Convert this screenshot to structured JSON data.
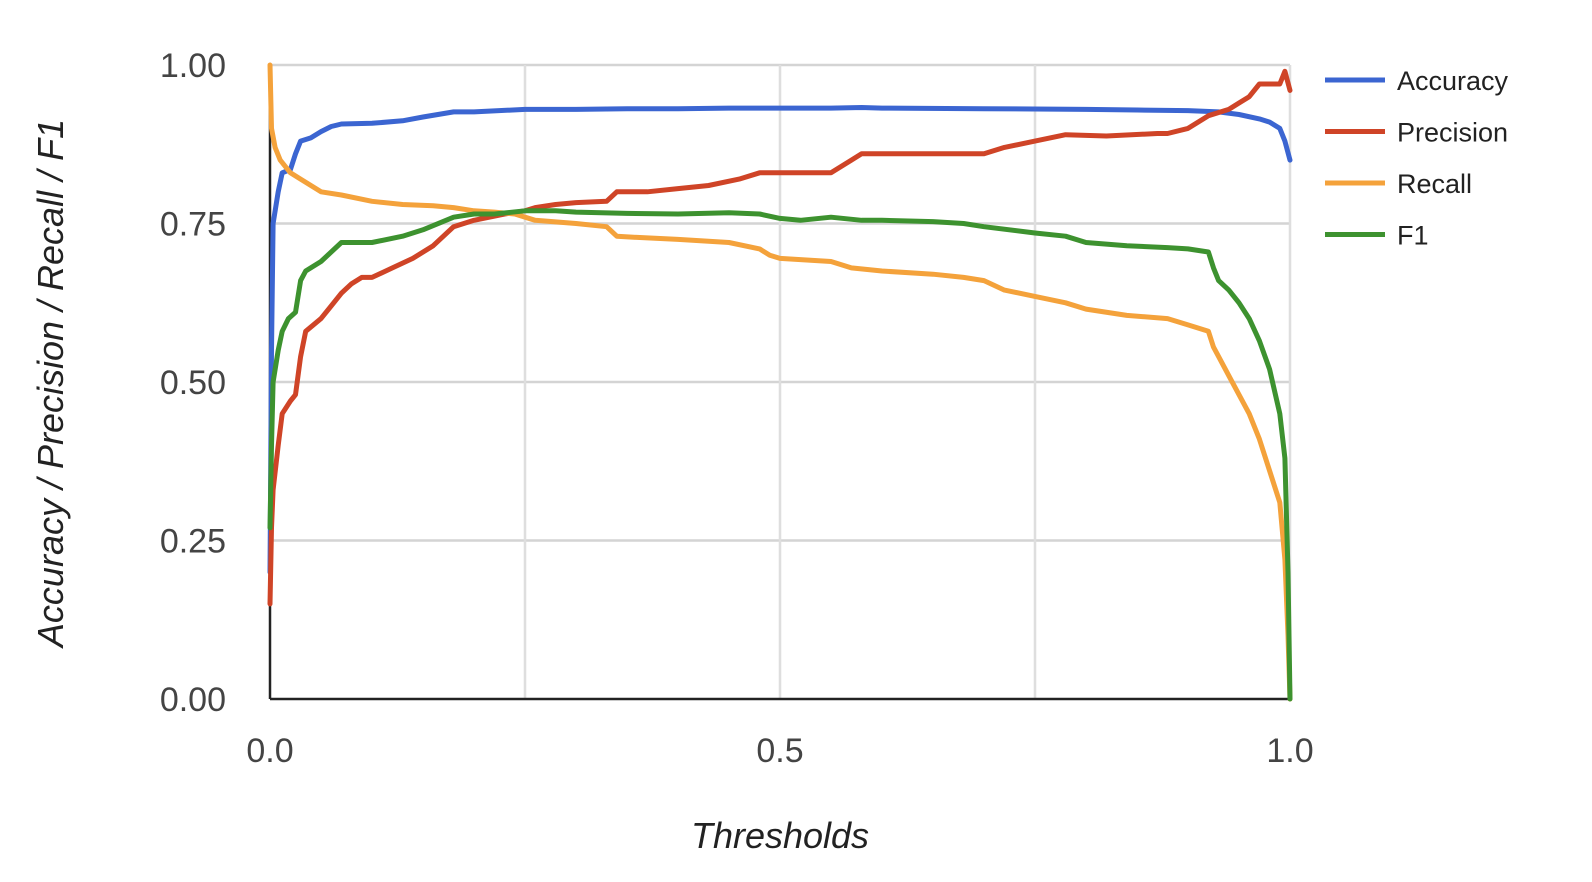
{
  "chart_data": {
    "type": "line",
    "xlabel": "Thresholds",
    "ylabel": "Accuracy / Precision / Recall / F1",
    "xlim": [
      0,
      1
    ],
    "ylim": [
      0,
      1
    ],
    "x_ticks": [
      0.0,
      0.25,
      0.5,
      0.75,
      1.0
    ],
    "x_tick_labels": [
      "0.0",
      "",
      "0.5",
      "",
      "1.0"
    ],
    "y_ticks": [
      0.0,
      0.25,
      0.5,
      0.75,
      1.0
    ],
    "y_tick_labels": [
      "0.00",
      "0.25",
      "0.50",
      "0.75",
      "1.00"
    ],
    "grid": true,
    "legend_position": "right",
    "series": [
      {
        "name": "Accuracy",
        "color": "#3b65d1",
        "points": [
          [
            0.0,
            0.2
          ],
          [
            0.0015,
            0.55
          ],
          [
            0.003,
            0.75
          ],
          [
            0.008,
            0.8
          ],
          [
            0.012,
            0.83
          ],
          [
            0.02,
            0.835
          ],
          [
            0.025,
            0.86
          ],
          [
            0.03,
            0.88
          ],
          [
            0.04,
            0.885
          ],
          [
            0.05,
            0.895
          ],
          [
            0.06,
            0.903
          ],
          [
            0.07,
            0.907
          ],
          [
            0.1,
            0.908
          ],
          [
            0.13,
            0.912
          ],
          [
            0.15,
            0.918
          ],
          [
            0.18,
            0.926
          ],
          [
            0.2,
            0.926
          ],
          [
            0.25,
            0.93
          ],
          [
            0.3,
            0.93
          ],
          [
            0.35,
            0.931
          ],
          [
            0.4,
            0.931
          ],
          [
            0.45,
            0.932
          ],
          [
            0.5,
            0.932
          ],
          [
            0.55,
            0.932
          ],
          [
            0.58,
            0.933
          ],
          [
            0.6,
            0.932
          ],
          [
            0.7,
            0.931
          ],
          [
            0.8,
            0.93
          ],
          [
            0.85,
            0.929
          ],
          [
            0.9,
            0.928
          ],
          [
            0.93,
            0.926
          ],
          [
            0.95,
            0.922
          ],
          [
            0.97,
            0.915
          ],
          [
            0.98,
            0.91
          ],
          [
            0.99,
            0.9
          ],
          [
            0.995,
            0.88
          ],
          [
            1.0,
            0.85
          ]
        ]
      },
      {
        "name": "Precision",
        "color": "#cf4427",
        "points": [
          [
            0.0,
            0.15
          ],
          [
            0.0015,
            0.27
          ],
          [
            0.003,
            0.33
          ],
          [
            0.008,
            0.4
          ],
          [
            0.012,
            0.45
          ],
          [
            0.02,
            0.47
          ],
          [
            0.025,
            0.48
          ],
          [
            0.03,
            0.54
          ],
          [
            0.035,
            0.58
          ],
          [
            0.05,
            0.6
          ],
          [
            0.06,
            0.62
          ],
          [
            0.07,
            0.64
          ],
          [
            0.08,
            0.655
          ],
          [
            0.09,
            0.665
          ],
          [
            0.1,
            0.665
          ],
          [
            0.12,
            0.68
          ],
          [
            0.14,
            0.695
          ],
          [
            0.16,
            0.715
          ],
          [
            0.18,
            0.745
          ],
          [
            0.2,
            0.755
          ],
          [
            0.23,
            0.765
          ],
          [
            0.25,
            0.77
          ],
          [
            0.26,
            0.775
          ],
          [
            0.28,
            0.78
          ],
          [
            0.3,
            0.783
          ],
          [
            0.33,
            0.785
          ],
          [
            0.34,
            0.8
          ],
          [
            0.37,
            0.8
          ],
          [
            0.4,
            0.805
          ],
          [
            0.43,
            0.81
          ],
          [
            0.46,
            0.82
          ],
          [
            0.48,
            0.83
          ],
          [
            0.52,
            0.83
          ],
          [
            0.55,
            0.83
          ],
          [
            0.57,
            0.85
          ],
          [
            0.58,
            0.86
          ],
          [
            0.6,
            0.86
          ],
          [
            0.7,
            0.86
          ],
          [
            0.72,
            0.87
          ],
          [
            0.75,
            0.88
          ],
          [
            0.78,
            0.89
          ],
          [
            0.82,
            0.888
          ],
          [
            0.87,
            0.892
          ],
          [
            0.88,
            0.892
          ],
          [
            0.9,
            0.9
          ],
          [
            0.92,
            0.92
          ],
          [
            0.94,
            0.93
          ],
          [
            0.95,
            0.94
          ],
          [
            0.96,
            0.95
          ],
          [
            0.97,
            0.97
          ],
          [
            0.99,
            0.97
          ],
          [
            0.995,
            0.99
          ],
          [
            1.0,
            0.96
          ]
        ]
      },
      {
        "name": "Recall",
        "color": "#f4a23b",
        "points": [
          [
            0.0,
            1.0
          ],
          [
            0.0015,
            0.9
          ],
          [
            0.005,
            0.87
          ],
          [
            0.01,
            0.85
          ],
          [
            0.015,
            0.84
          ],
          [
            0.02,
            0.83
          ],
          [
            0.03,
            0.82
          ],
          [
            0.05,
            0.8
          ],
          [
            0.07,
            0.795
          ],
          [
            0.1,
            0.785
          ],
          [
            0.13,
            0.78
          ],
          [
            0.16,
            0.778
          ],
          [
            0.18,
            0.775
          ],
          [
            0.2,
            0.77
          ],
          [
            0.22,
            0.768
          ],
          [
            0.24,
            0.765
          ],
          [
            0.26,
            0.755
          ],
          [
            0.3,
            0.75
          ],
          [
            0.33,
            0.745
          ],
          [
            0.34,
            0.73
          ],
          [
            0.36,
            0.728
          ],
          [
            0.4,
            0.725
          ],
          [
            0.45,
            0.72
          ],
          [
            0.48,
            0.71
          ],
          [
            0.49,
            0.7
          ],
          [
            0.5,
            0.695
          ],
          [
            0.55,
            0.69
          ],
          [
            0.57,
            0.68
          ],
          [
            0.6,
            0.675
          ],
          [
            0.65,
            0.67
          ],
          [
            0.68,
            0.665
          ],
          [
            0.7,
            0.66
          ],
          [
            0.72,
            0.645
          ],
          [
            0.75,
            0.635
          ],
          [
            0.78,
            0.625
          ],
          [
            0.8,
            0.615
          ],
          [
            0.84,
            0.605
          ],
          [
            0.88,
            0.6
          ],
          [
            0.9,
            0.59
          ],
          [
            0.92,
            0.58
          ],
          [
            0.925,
            0.555
          ],
          [
            0.93,
            0.54
          ],
          [
            0.94,
            0.51
          ],
          [
            0.95,
            0.48
          ],
          [
            0.96,
            0.45
          ],
          [
            0.97,
            0.41
          ],
          [
            0.98,
            0.36
          ],
          [
            0.99,
            0.31
          ],
          [
            0.995,
            0.22
          ],
          [
            0.998,
            0.1
          ],
          [
            1.0,
            0.0
          ]
        ]
      },
      {
        "name": "F1",
        "color": "#3d922f",
        "points": [
          [
            0.0,
            0.27
          ],
          [
            0.0015,
            0.4
          ],
          [
            0.003,
            0.5
          ],
          [
            0.008,
            0.55
          ],
          [
            0.012,
            0.58
          ],
          [
            0.018,
            0.6
          ],
          [
            0.025,
            0.61
          ],
          [
            0.03,
            0.66
          ],
          [
            0.035,
            0.675
          ],
          [
            0.05,
            0.69
          ],
          [
            0.07,
            0.72
          ],
          [
            0.1,
            0.72
          ],
          [
            0.13,
            0.73
          ],
          [
            0.15,
            0.74
          ],
          [
            0.18,
            0.76
          ],
          [
            0.2,
            0.765
          ],
          [
            0.22,
            0.765
          ],
          [
            0.25,
            0.77
          ],
          [
            0.28,
            0.77
          ],
          [
            0.3,
            0.768
          ],
          [
            0.35,
            0.766
          ],
          [
            0.4,
            0.765
          ],
          [
            0.45,
            0.767
          ],
          [
            0.48,
            0.765
          ],
          [
            0.5,
            0.758
          ],
          [
            0.52,
            0.755
          ],
          [
            0.55,
            0.76
          ],
          [
            0.58,
            0.755
          ],
          [
            0.6,
            0.755
          ],
          [
            0.65,
            0.753
          ],
          [
            0.68,
            0.75
          ],
          [
            0.7,
            0.745
          ],
          [
            0.75,
            0.735
          ],
          [
            0.78,
            0.73
          ],
          [
            0.8,
            0.72
          ],
          [
            0.84,
            0.715
          ],
          [
            0.88,
            0.712
          ],
          [
            0.9,
            0.71
          ],
          [
            0.92,
            0.705
          ],
          [
            0.925,
            0.68
          ],
          [
            0.93,
            0.66
          ],
          [
            0.94,
            0.645
          ],
          [
            0.95,
            0.625
          ],
          [
            0.96,
            0.6
          ],
          [
            0.97,
            0.565
          ],
          [
            0.98,
            0.52
          ],
          [
            0.99,
            0.45
          ],
          [
            0.995,
            0.38
          ],
          [
            0.998,
            0.2
          ],
          [
            1.0,
            0.0
          ]
        ]
      }
    ]
  }
}
